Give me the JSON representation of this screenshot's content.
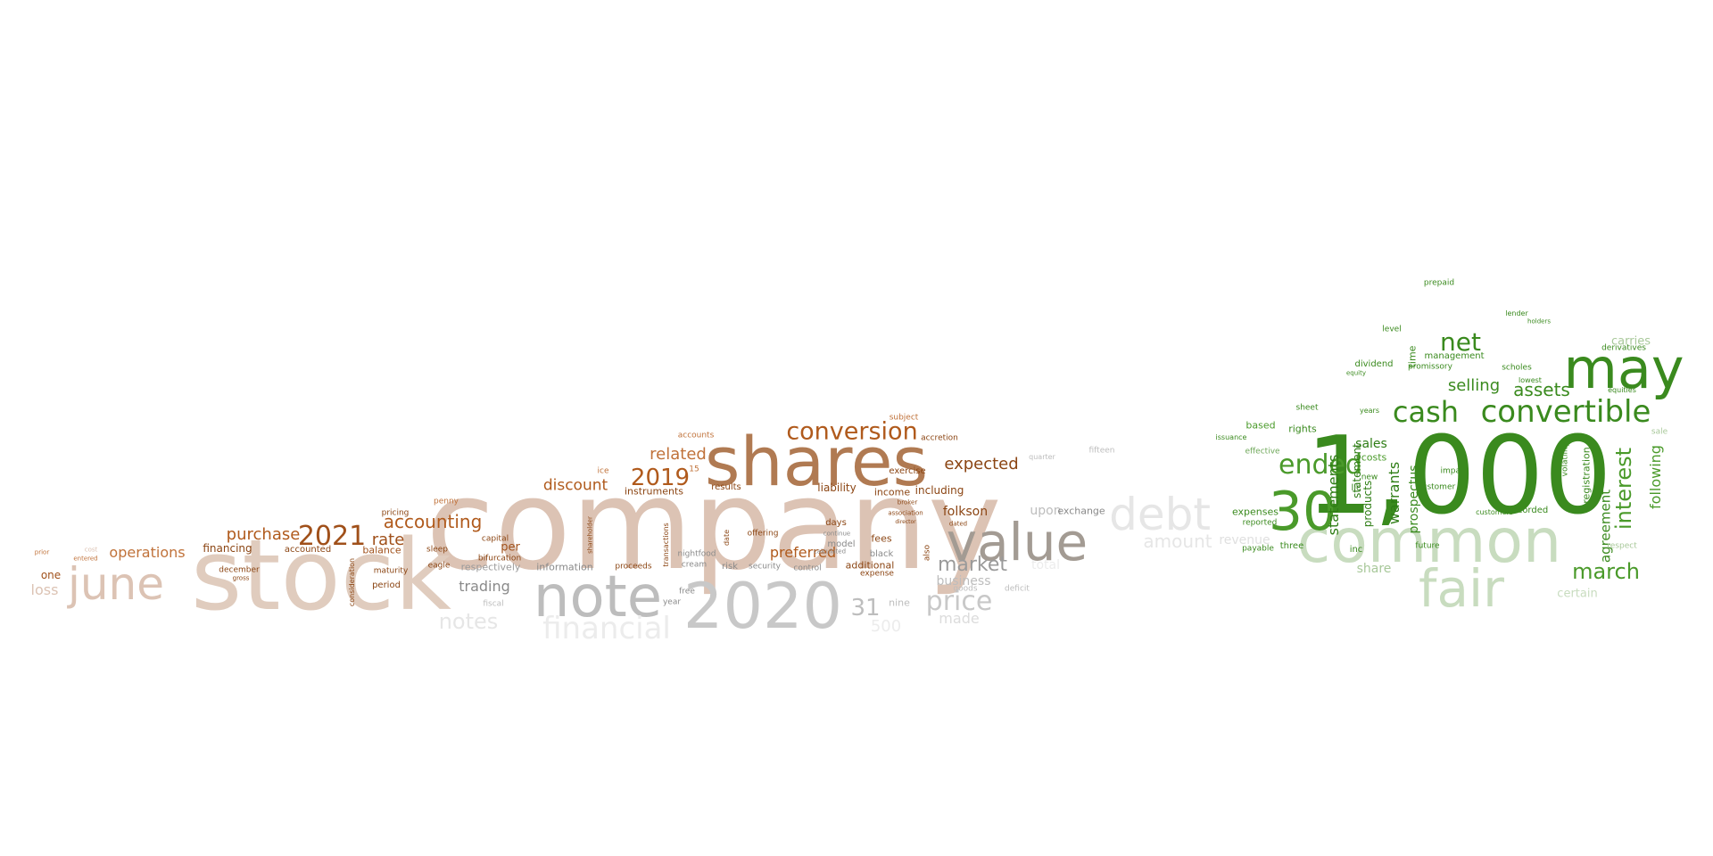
{
  "palette": {
    "peach": "#dcc3b4",
    "light_peach": "#e8d5c8",
    "tan": "#c4a690",
    "mocha": "#b07a52",
    "rust": "#b05a1c",
    "brown": "#8b4513",
    "gray": "#a09890",
    "silver": "#bdbdbd",
    "pale_gray": "#dcdcdc",
    "ghost": "#ececec",
    "green": "#3a8a1e",
    "bright_green": "#4a9a2a",
    "dark_green": "#2e7d15",
    "mid_green": "#6fa85a",
    "pale_green": "#c8dcbf",
    "sage": "#a8c89a"
  },
  "words": [
    "company",
    "stock",
    "shares",
    "note",
    "2020",
    "value",
    "june",
    "1,000",
    "common",
    "fair",
    "may",
    "30",
    "debt",
    "cash",
    "convertible",
    "ended",
    "net",
    "march",
    "interest",
    "conversion",
    "2021",
    "2019",
    "accounting",
    "price",
    "market",
    "financial",
    "rate",
    "discount",
    "expected",
    "related",
    "purchase",
    "notes",
    "operations",
    "assets",
    "statements",
    "warrants",
    "preferred",
    "31",
    "amount",
    "total",
    "agreement",
    "following",
    "registration",
    "prospectus",
    "selling",
    "sales",
    "trading",
    "liability",
    "loss",
    "financing",
    "including",
    "income",
    "upon",
    "business",
    "folkson",
    "accounts",
    "per",
    "respectively",
    "information",
    "instruments",
    "security",
    "risk",
    "control",
    "additional",
    "days",
    "fees",
    "model",
    "black",
    "nine",
    "period",
    "balance",
    "accounted",
    "consideration",
    "maturity",
    "capital",
    "bifurcation",
    "proceeds",
    "shareholder",
    "transactions",
    "date",
    "results",
    "offering",
    "exercise",
    "also",
    "exchange",
    "revenue",
    "expenses",
    "reported",
    "effective",
    "based",
    "issuance",
    "payable",
    "three",
    "new",
    "llc",
    "statement",
    "products",
    "costs",
    "inc",
    "share",
    "customer",
    "future",
    "impact",
    "recorded",
    "customers",
    "management",
    "dividend",
    "promissory",
    "equity",
    "level",
    "time",
    "years",
    "prepaid",
    "lender",
    "holders",
    "scholes",
    "derivatives",
    "equities",
    "volatility",
    "lowest",
    "certain",
    "made",
    "500",
    "15",
    "ice",
    "cream",
    "nightfood",
    "year",
    "free",
    "fiscal",
    "penny",
    "eagle",
    "sleep",
    "one",
    "december",
    "gross",
    "pricing",
    "entered",
    "prior",
    "cost",
    "subject",
    "accretion",
    "quarter",
    "goods",
    "deficit",
    "dated",
    "broker",
    "continue",
    "expense",
    "calculated",
    "association",
    "director",
    "respect",
    "fifteen",
    "carries",
    "sale",
    "rights",
    "sheet"
  ]
}
